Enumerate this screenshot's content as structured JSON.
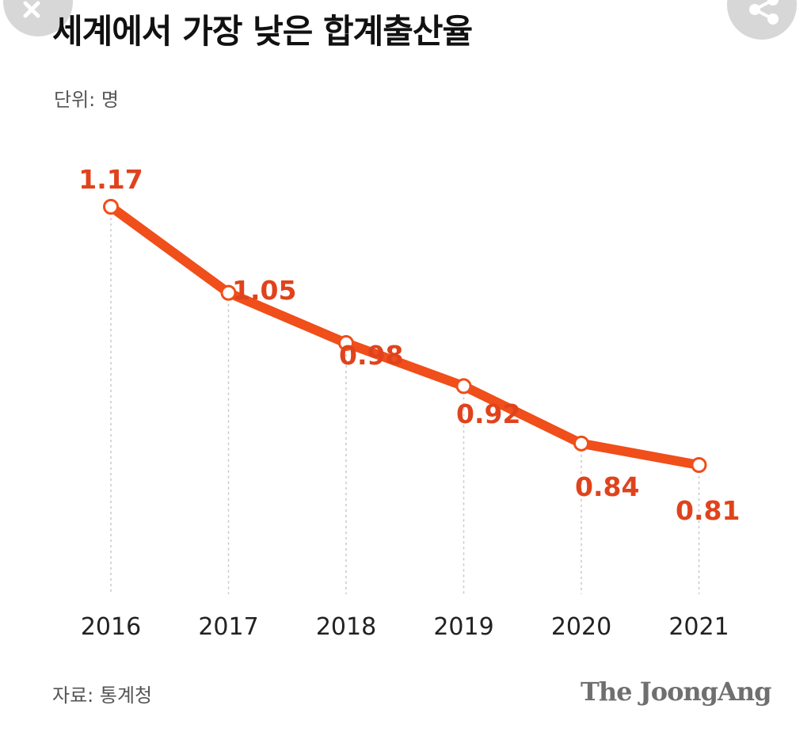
{
  "header": {
    "title": "세계에서 가장 낮은 합계출산율",
    "unit_label": "단위: 명"
  },
  "footer": {
    "source": "자료: 통계청",
    "logo_text": "The JoongAng"
  },
  "overlay": {
    "close_icon": "close-icon",
    "share_icon": "share-icon"
  },
  "colors": {
    "line": "#f04e1a",
    "label": "#e0431c",
    "overlay_button": "#d7d7d7"
  },
  "chart_data": {
    "type": "line",
    "categories": [
      "2016",
      "2017",
      "2018",
      "2019",
      "2020",
      "2021"
    ],
    "series": [
      {
        "values": [
          1.17,
          1.05,
          0.98,
          0.92,
          0.84,
          0.81
        ]
      }
    ],
    "data_labels": [
      "1.17",
      "1.05",
      "0.98",
      "0.92",
      "0.84",
      "0.81"
    ],
    "title": "세계에서 가장 낮은 합계출산율",
    "xlabel": "",
    "ylabel": "",
    "ylim": [
      0.63,
      1.17
    ],
    "grid": false,
    "legend": "none"
  }
}
